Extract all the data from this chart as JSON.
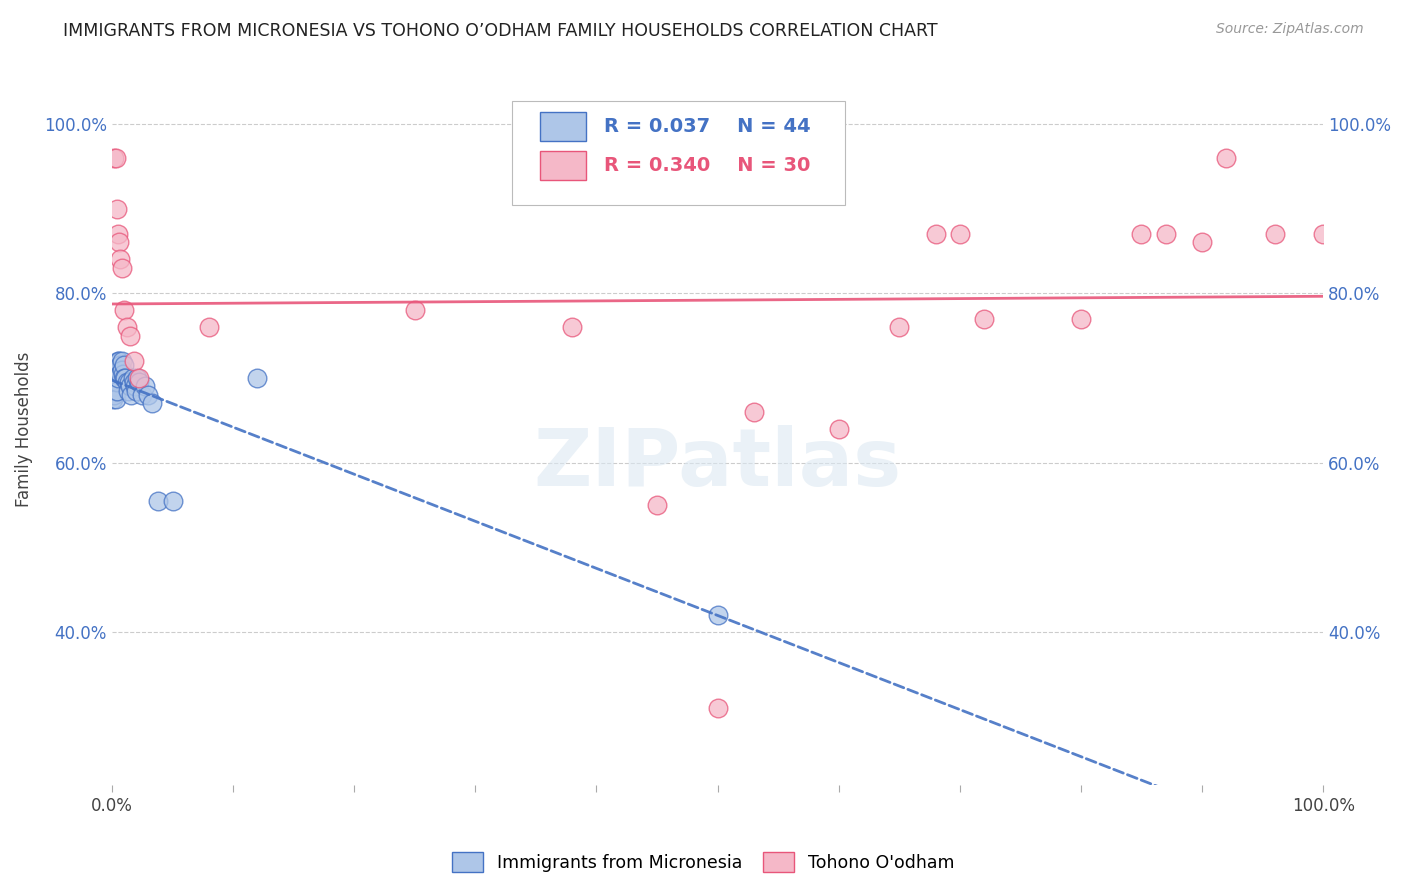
{
  "title": "IMMIGRANTS FROM MICRONESIA VS TOHONO O’ODHAM FAMILY HOUSEHOLDS CORRELATION CHART",
  "source": "Source: ZipAtlas.com",
  "ylabel": "Family Households",
  "blue_R": 0.037,
  "blue_N": 44,
  "pink_R": 0.34,
  "pink_N": 30,
  "blue_color": "#aec6e8",
  "pink_color": "#f5b8c8",
  "blue_line_color": "#4472c4",
  "pink_line_color": "#e8567a",
  "title_color": "#222222",
  "source_color": "#999999",
  "watermark": "ZIPatlas",
  "legend_label_blue": "Immigrants from Micronesia",
  "legend_label_pink": "Tohono O'odham",
  "blue_points_x": [
    0.001,
    0.001,
    0.002,
    0.002,
    0.002,
    0.003,
    0.003,
    0.003,
    0.003,
    0.004,
    0.004,
    0.004,
    0.005,
    0.005,
    0.005,
    0.006,
    0.006,
    0.007,
    0.007,
    0.008,
    0.008,
    0.009,
    0.01,
    0.01,
    0.011,
    0.012,
    0.013,
    0.014,
    0.015,
    0.016,
    0.017,
    0.018,
    0.019,
    0.02,
    0.021,
    0.022,
    0.025,
    0.027,
    0.03,
    0.033,
    0.038,
    0.05,
    0.12,
    0.5
  ],
  "blue_points_y": [
    0.685,
    0.675,
    0.7,
    0.69,
    0.68,
    0.7,
    0.695,
    0.685,
    0.675,
    0.705,
    0.695,
    0.685,
    0.72,
    0.71,
    0.7,
    0.72,
    0.71,
    0.715,
    0.705,
    0.72,
    0.71,
    0.705,
    0.715,
    0.7,
    0.7,
    0.695,
    0.685,
    0.695,
    0.69,
    0.68,
    0.7,
    0.695,
    0.69,
    0.685,
    0.7,
    0.695,
    0.68,
    0.69,
    0.68,
    0.67,
    0.555,
    0.555,
    0.7,
    0.42
  ],
  "pink_points_x": [
    0.002,
    0.003,
    0.004,
    0.005,
    0.006,
    0.007,
    0.008,
    0.01,
    0.012,
    0.015,
    0.018,
    0.022,
    0.08,
    0.25,
    0.38,
    0.45,
    0.5,
    0.53,
    0.6,
    0.65,
    0.68,
    0.7,
    0.72,
    0.8,
    0.85,
    0.87,
    0.9,
    0.92,
    0.96,
    1.0
  ],
  "pink_points_y": [
    0.96,
    0.96,
    0.9,
    0.87,
    0.86,
    0.84,
    0.83,
    0.78,
    0.76,
    0.75,
    0.72,
    0.7,
    0.76,
    0.78,
    0.76,
    0.55,
    0.31,
    0.66,
    0.64,
    0.76,
    0.87,
    0.87,
    0.77,
    0.77,
    0.87,
    0.87,
    0.86,
    0.96,
    0.87,
    0.87
  ],
  "xlim": [
    0.0,
    1.0
  ],
  "ylim": [
    0.22,
    1.06
  ],
  "yticks": [
    0.4,
    0.6,
    0.8,
    1.0
  ],
  "ytick_labels": [
    "40.0%",
    "60.0%",
    "80.0%",
    "100.0%"
  ],
  "xticks": [
    0.0,
    0.1,
    0.2,
    0.3,
    0.4,
    0.5,
    0.6,
    0.7,
    0.8,
    0.9,
    1.0
  ],
  "grid_color": "#cccccc",
  "bg_color": "#ffffff"
}
